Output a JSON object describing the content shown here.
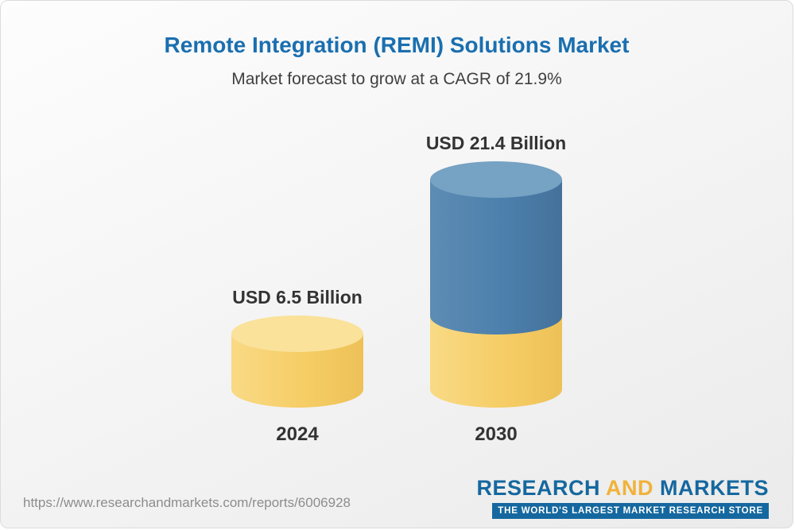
{
  "header": {
    "title": "Remote Integration (REMI) Solutions Market",
    "subtitle": "Market forecast to grow at a CAGR of 21.9%"
  },
  "chart_data": {
    "type": "bar",
    "categories": [
      "2024",
      "2030"
    ],
    "values": [
      6.5,
      21.4
    ],
    "unit": "USD Billion",
    "value_labels": [
      "USD 6.5 Billion",
      "USD 21.4 Billion"
    ],
    "title": "Remote Integration (REMI) Solutions Market",
    "subtitle": "Market forecast to grow at a CAGR of 21.9%",
    "cagr_percent": 21.9,
    "legend_position": "none",
    "grid": false,
    "bar_style": "3d-cylinder",
    "bar_colors": [
      "#f6cd66",
      "#4d80ad"
    ],
    "bar_top_colors": [
      "#fae29b",
      "#76a2c3"
    ]
  },
  "footer": {
    "source_url": "https://www.researchandmarkets.com/reports/6006928",
    "logo": {
      "part1": "RESEARCH ",
      "part2": "AND",
      "part3": " MARKETS",
      "tagline": "THE WORLD'S LARGEST MARKET RESEARCH STORE"
    }
  },
  "colors": {
    "title_blue": "#1a6fb0",
    "text_dark": "#333333",
    "url_gray": "#8d8d8d",
    "logo_blue": "#15689f",
    "logo_yellow": "#f0b23a",
    "card_border": "#dcdcdc"
  }
}
